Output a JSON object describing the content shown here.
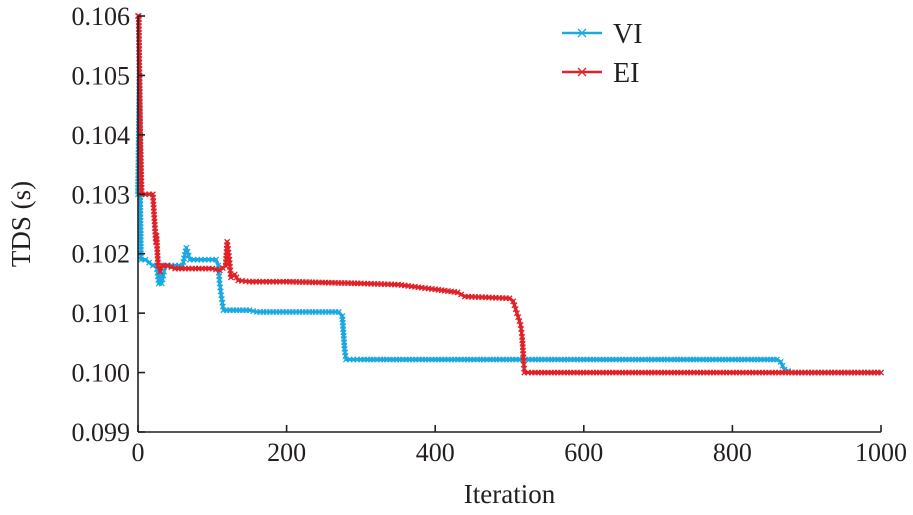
{
  "chart_data": {
    "type": "line",
    "title": "",
    "xlabel": "Iteration",
    "ylabel": "TDS (s)",
    "xlim": [
      0,
      1000
    ],
    "ylim": [
      0.099,
      0.106
    ],
    "xticks": [
      0,
      200,
      400,
      600,
      800,
      1000
    ],
    "xtick_labels": [
      "0",
      "200",
      "400",
      "600",
      "800",
      "1000"
    ],
    "yticks": [
      0.099,
      0.1,
      0.101,
      0.102,
      0.103,
      0.104,
      0.105,
      0.106
    ],
    "ytick_labels": [
      "0.099",
      "0.100",
      "0.101",
      "0.102",
      "0.103",
      "0.104",
      "0.105",
      "0.106"
    ],
    "grid": false,
    "legend_position": "top-right",
    "series": [
      {
        "name": "VI",
        "color": "#1ba9e1",
        "marker": "x",
        "x": [
          0,
          2,
          3,
          4,
          10,
          20,
          25,
          28,
          30,
          32,
          35,
          38,
          40,
          60,
          65,
          70,
          100,
          105,
          108,
          110,
          112,
          115,
          150,
          160,
          270,
          275,
          278,
          280,
          300,
          500,
          700,
          860,
          865,
          870,
          880,
          1000
        ],
        "y": [
          0.103,
          0.105,
          0.103,
          0.1019,
          0.1019,
          0.1018,
          0.1018,
          0.1015,
          0.1017,
          0.1015,
          0.1017,
          0.1018,
          0.1018,
          0.1018,
          0.1021,
          0.1019,
          0.1019,
          0.1019,
          0.1018,
          0.1015,
          0.1013,
          0.10105,
          0.10105,
          0.10102,
          0.10102,
          0.10095,
          0.1004,
          0.10022,
          0.10022,
          0.10022,
          0.10022,
          0.10022,
          0.10018,
          0.10005,
          0.1,
          0.1
        ]
      },
      {
        "name": "EI",
        "color": "#e02329",
        "marker": "x",
        "x": [
          0,
          1,
          2,
          3,
          5,
          20,
          24,
          25,
          27,
          30,
          32,
          35,
          40,
          50,
          100,
          110,
          118,
          120,
          123,
          125,
          130,
          135,
          150,
          200,
          300,
          350,
          400,
          430,
          440,
          500,
          505,
          510,
          515,
          517,
          519,
          520,
          530,
          700,
          880,
          1000
        ],
        "y": [
          0.106,
          0.106,
          0.105,
          0.104,
          0.103,
          0.103,
          0.1022,
          0.1023,
          0.1018,
          0.1017,
          0.1018,
          0.1018,
          0.1018,
          0.10175,
          0.10175,
          0.10172,
          0.1018,
          0.1022,
          0.1019,
          0.1016,
          0.10165,
          0.10155,
          0.10153,
          0.10153,
          0.1015,
          0.10148,
          0.1014,
          0.10135,
          0.10128,
          0.10125,
          0.1012,
          0.101,
          0.1008,
          0.1006,
          0.1002,
          0.1,
          0.1,
          0.1,
          0.1,
          0.1
        ]
      }
    ]
  }
}
